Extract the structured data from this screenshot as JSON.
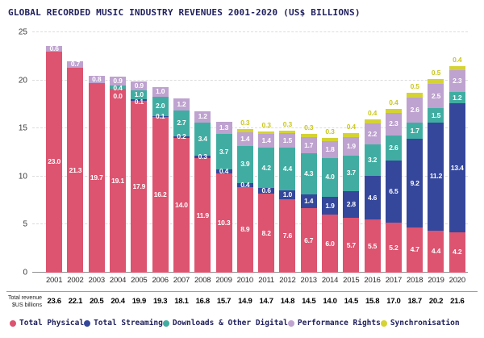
{
  "title": "GLOBAL RECORDED MUSIC INDUSTRY REVENUES 2001-2020 (US$ BILLIONS)",
  "chart_data": {
    "type": "bar",
    "stacked": true,
    "title": "GLOBAL RECORDED MUSIC INDUSTRY REVENUES 2001-2020 (US$ BILLIONS)",
    "xlabel": "",
    "ylabel": "",
    "ylim": [
      0,
      25
    ],
    "yticks": [
      0,
      5,
      10,
      15,
      20,
      25
    ],
    "grid": "horizontal-dashed",
    "legend_position": "bottom",
    "categories": [
      "2001",
      "2002",
      "2003",
      "2004",
      "2005",
      "2006",
      "2007",
      "2008",
      "2009",
      "2010",
      "2011",
      "2012",
      "2013",
      "2014",
      "2015",
      "2016",
      "2017",
      "2018",
      "2019",
      "2020"
    ],
    "series": [
      {
        "id": "total-physical",
        "label": "Total Physical",
        "color": "#DC5470",
        "values": [
          23.0,
          21.3,
          19.7,
          19.1,
          17.9,
          16.2,
          14.0,
          11.9,
          10.3,
          8.9,
          8.2,
          7.6,
          6.7,
          6.0,
          5.7,
          5.5,
          5.2,
          4.7,
          4.4,
          4.2
        ]
      },
      {
        "id": "total-streaming",
        "label": "Total Streaming",
        "color": "#35479B",
        "values": [
          null,
          null,
          null,
          0.0,
          0.1,
          0.1,
          0.2,
          0.3,
          0.4,
          0.4,
          0.6,
          1.0,
          1.4,
          1.9,
          2.8,
          4.6,
          6.5,
          9.2,
          11.2,
          13.4
        ]
      },
      {
        "id": "downloads-other-digital",
        "label": "Downloads & Other Digital",
        "color": "#41ADA2",
        "values": [
          null,
          null,
          null,
          0.4,
          1.0,
          2.0,
          2.7,
          3.4,
          3.7,
          3.9,
          4.2,
          4.4,
          4.3,
          4.0,
          3.7,
          3.2,
          2.6,
          1.7,
          1.5,
          1.2
        ]
      },
      {
        "id": "performance-rights",
        "label": "Performance Rights",
        "color": "#BEA2CF",
        "values": [
          0.6,
          0.7,
          0.8,
          0.9,
          0.9,
          1.0,
          1.2,
          1.2,
          1.3,
          1.4,
          1.4,
          1.5,
          1.7,
          1.8,
          1.9,
          2.2,
          2.3,
          2.6,
          2.5,
          2.3
        ]
      },
      {
        "id": "synchronisation",
        "label": "Synchronisation",
        "color": "#D5D334",
        "outside_label": true,
        "values": [
          null,
          null,
          null,
          null,
          null,
          null,
          null,
          null,
          null,
          0.3,
          0.3,
          0.3,
          0.3,
          0.3,
          0.4,
          0.4,
          0.4,
          0.5,
          0.5,
          0.4
        ]
      }
    ],
    "totals_row": {
      "label_line1": "Total revenue",
      "label_line2": "$US billions",
      "values": [
        23.6,
        22.1,
        20.5,
        20.4,
        19.9,
        19.3,
        18.1,
        16.8,
        15.7,
        14.9,
        14.7,
        14.8,
        14.5,
        14.0,
        14.5,
        15.8,
        17.0,
        18.7,
        20.2,
        21.6
      ]
    }
  }
}
